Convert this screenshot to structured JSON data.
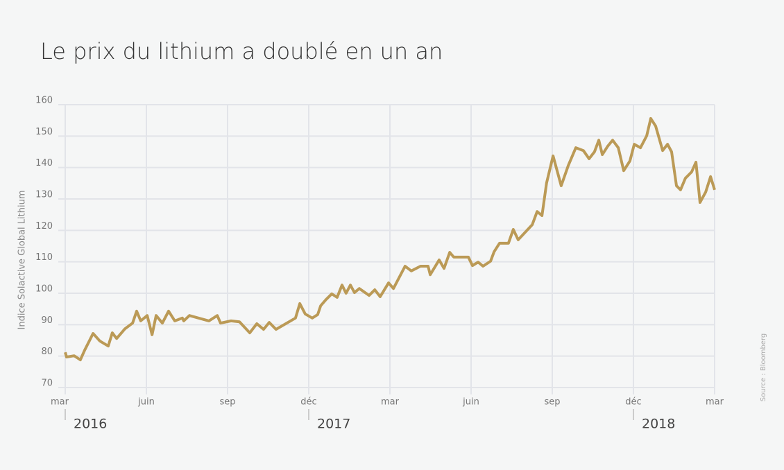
{
  "chart_data": {
    "type": "line",
    "title": "Le prix du lithium a doublé en un an",
    "y_label": "Indice Solactive Global Lithium",
    "source": "Source : Bloomberg",
    "color": "#bb9a56",
    "grid": true,
    "x": [
      0,
      0.05,
      0.33,
      0.56,
      0.72,
      1.03,
      1.28,
      1.59,
      1.74,
      1.9,
      2.21,
      2.49,
      2.64,
      2.79,
      3.03,
      3.21,
      3.36,
      3.59,
      3.82,
      4.05,
      4.33,
      4.38,
      4.59,
      5.31,
      5.62,
      5.74,
      6.13,
      6.44,
      6.82,
      7.08,
      7.33,
      7.54,
      7.79,
      8.51,
      8.67,
      8.87,
      9.13,
      9.33,
      9.44,
      9.64,
      9.85,
      10.05,
      10.23,
      10.38,
      10.54,
      10.69,
      10.87,
      11.23,
      11.44,
      11.64,
      11.95,
      12.13,
      12.56,
      12.79,
      13.13,
      13.41,
      13.49,
      13.82,
      14,
      14.21,
      14.36,
      14.9,
      15.05,
      15.26,
      15.44,
      15.72,
      15.85,
      16.05,
      16.38,
      16.56,
      16.74,
      17.26,
      17.44,
      17.62,
      17.79,
      18.03,
      18.33,
      18.59,
      18.87,
      19.15,
      19.36,
      19.56,
      19.72,
      19.85,
      20.05,
      20.23,
      20.44,
      20.64,
      20.87,
      21.03,
      21.26,
      21.49,
      21.64,
      21.82,
      22.08,
      22.26,
      22.41,
      22.59,
      22.74,
      22.92,
      23.15,
      23.31,
      23.46,
      23.67,
      23.85,
      24
    ],
    "values": [
      81.2,
      79.7,
      80.1,
      78.8,
      81.9,
      87.2,
      84.8,
      83.2,
      87.4,
      85.6,
      88.7,
      90.5,
      94.3,
      91.2,
      92.9,
      86.8,
      92.9,
      90.5,
      94.3,
      91.2,
      92.1,
      91.2,
      92.9,
      91.2,
      92.9,
      90.5,
      91.2,
      90.9,
      87.4,
      90.3,
      88.5,
      90.7,
      88.5,
      92.1,
      96.7,
      93.4,
      92.1,
      93.2,
      96.0,
      98.0,
      99.8,
      98.7,
      102.6,
      100.0,
      102.6,
      100.2,
      101.5,
      99.3,
      101.1,
      98.9,
      103.3,
      101.5,
      108.6,
      107.1,
      108.6,
      108.6,
      105.9,
      110.6,
      107.9,
      113.0,
      111.5,
      111.5,
      108.8,
      109.9,
      108.6,
      110.2,
      113.2,
      115.9,
      115.9,
      120.3,
      117.0,
      121.8,
      126.0,
      124.7,
      135.1,
      143.7,
      134.2,
      140.6,
      146.3,
      145.4,
      142.8,
      145.0,
      148.7,
      144.1,
      146.8,
      148.7,
      146.3,
      139.0,
      142.1,
      147.4,
      146.3,
      150.1,
      155.6,
      153.2,
      145.4,
      147.4,
      145.0,
      134.2,
      132.9,
      136.6,
      138.6,
      141.7,
      128.9,
      132.2,
      137.1,
      132.9
    ],
    "xlim": [
      0,
      24
    ],
    "xticks": [
      {
        "value": 0,
        "label": "mar"
      },
      {
        "value": 3,
        "label": "juin"
      },
      {
        "value": 6,
        "label": "sep"
      },
      {
        "value": 9,
        "label": "déc"
      },
      {
        "value": 12,
        "label": "mar"
      },
      {
        "value": 15,
        "label": "juin"
      },
      {
        "value": 18,
        "label": "sep"
      },
      {
        "value": 21,
        "label": "déc"
      },
      {
        "value": 24,
        "label": "mar"
      }
    ],
    "year_ticks": [
      {
        "value": 0,
        "label": "2016"
      },
      {
        "value": 9,
        "label": "2017"
      },
      {
        "value": 21,
        "label": "2018"
      }
    ],
    "ylim": [
      70,
      160
    ],
    "yticks": [
      70,
      80,
      90,
      100,
      110,
      120,
      130,
      140,
      150,
      160
    ]
  }
}
